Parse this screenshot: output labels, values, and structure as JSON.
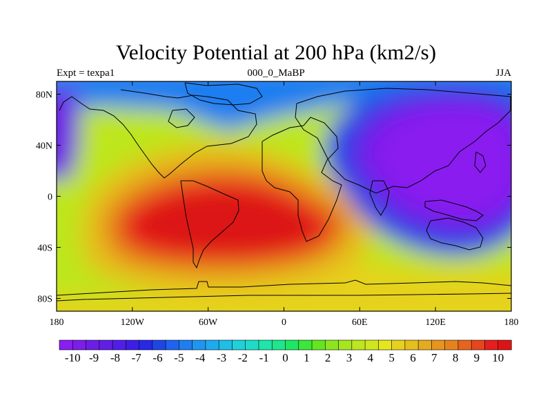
{
  "chart_data": {
    "type": "heatmap",
    "title": "Velocity Potential at 200 hPa (km2/s)",
    "subtitle_left": "Expt = texpa1",
    "subtitle_center": "000_0_MaBP",
    "subtitle_right": "JJA",
    "xlabel": "",
    "ylabel": "",
    "x_ticks": [
      -180,
      -120,
      -60,
      0,
      60,
      120,
      180
    ],
    "x_tick_labels": [
      "180",
      "120W",
      "60W",
      "0",
      "60E",
      "120E",
      "180"
    ],
    "y_ticks": [
      80,
      40,
      0,
      -40,
      -80
    ],
    "y_tick_labels": [
      "80N",
      "40N",
      "0",
      "40S",
      "80S"
    ],
    "xlim": [
      -180,
      180
    ],
    "ylim": [
      -90,
      90
    ],
    "field_centers": [
      {
        "lon": -30,
        "lat": -20,
        "value": 11,
        "note": "maximum over South Atlantic / South America"
      },
      {
        "lon": 130,
        "lat": 35,
        "value": -11,
        "note": "minimum over Asia / West Pacific"
      }
    ],
    "colorbar": {
      "labels": [
        "-10",
        "-9",
        "-8",
        "-7",
        "-6",
        "-5",
        "-4",
        "-3",
        "-2",
        "-1",
        "0",
        "1",
        "2",
        "3",
        "4",
        "5",
        "6",
        "7",
        "8",
        "9",
        "10"
      ],
      "min": -10,
      "max": 10,
      "step": 0.5,
      "colors": [
        "#8a1ef0",
        "#7a1ee8",
        "#6d1ee6",
        "#601ee6",
        "#501ee8",
        "#3e1ee6",
        "#2828e6",
        "#1e46e6",
        "#1e64f0",
        "#1e7ef0",
        "#1e96f0",
        "#1eaaf0",
        "#1ebee6",
        "#1ed2dc",
        "#1edcc8",
        "#1ee6aa",
        "#1ee68c",
        "#1ee664",
        "#3ce63c",
        "#64e61e",
        "#8ce61e",
        "#a6e61e",
        "#bee61e",
        "#d2e61e",
        "#e6e61e",
        "#e6d21e",
        "#e6be1e",
        "#e6aa1e",
        "#e6961e",
        "#e6821e",
        "#e6641e",
        "#e6461e",
        "#e61e1e",
        "#dc1414"
      ],
      "orientation": "horizontal"
    }
  }
}
